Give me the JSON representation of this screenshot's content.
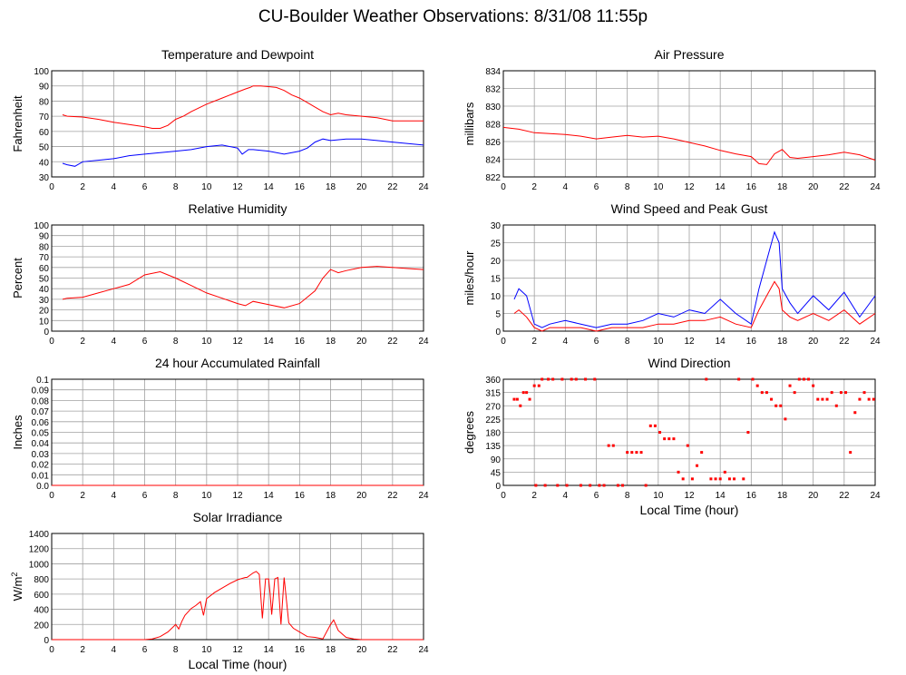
{
  "page_title": "CU-Boulder Weather Observations: 8/31/08 11:55p",
  "colors": {
    "red": "#ff0000",
    "blue": "#0000ff",
    "grid": "#a0a0a0"
  },
  "chart_data": [
    {
      "id": "temp",
      "type": "line",
      "title": "Temperature and Dewpoint",
      "xlabel": "",
      "ylabel": "Fahrenheit",
      "xlim": [
        0,
        24
      ],
      "ylim": [
        30,
        100
      ],
      "xticks": [
        0,
        2,
        4,
        6,
        8,
        10,
        12,
        14,
        16,
        18,
        20,
        22,
        24
      ],
      "yticks": [
        30,
        40,
        50,
        60,
        70,
        80,
        90,
        100
      ],
      "series": [
        {
          "color": "#ff0000",
          "x": [
            0.7,
            1,
            2,
            3,
            4,
            5,
            6,
            6.5,
            7,
            7.5,
            8,
            8.5,
            9,
            10,
            11,
            12,
            12.5,
            12.8,
            13,
            13.5,
            14,
            14.5,
            15,
            15.5,
            16,
            16.5,
            17,
            17.5,
            18,
            18.5,
            19,
            20,
            21,
            22,
            23,
            24
          ],
          "y": [
            71,
            70,
            69.5,
            68,
            66,
            64.5,
            63,
            62,
            62,
            64,
            68,
            70,
            73,
            78,
            82,
            86,
            88,
            89,
            90,
            90,
            89.5,
            89,
            87,
            84,
            82,
            79,
            76,
            73,
            71,
            72,
            71,
            70,
            69,
            67,
            67,
            67
          ]
        },
        {
          "color": "#0000ff",
          "x": [
            0.7,
            1,
            1.5,
            2,
            3,
            4,
            5,
            6,
            7,
            8,
            9,
            10,
            11,
            12,
            12.3,
            12.7,
            13,
            14,
            15,
            16,
            16.5,
            17,
            17.5,
            18,
            19,
            20,
            21,
            22,
            23,
            24
          ],
          "y": [
            39,
            38,
            37,
            40,
            41,
            42,
            44,
            45,
            46,
            47,
            48,
            50,
            51,
            49,
            45,
            48,
            48,
            47,
            45,
            47,
            49,
            53,
            55,
            54,
            55,
            55,
            54,
            53,
            52,
            51
          ]
        }
      ]
    },
    {
      "id": "pressure",
      "type": "line",
      "title": "Air Pressure",
      "xlabel": "",
      "ylabel": "millibars",
      "xlim": [
        0,
        24
      ],
      "ylim": [
        822,
        834
      ],
      "xticks": [
        0,
        2,
        4,
        6,
        8,
        10,
        12,
        14,
        16,
        18,
        20,
        22,
        24
      ],
      "yticks": [
        822,
        824,
        826,
        828,
        830,
        832,
        834
      ],
      "series": [
        {
          "color": "#ff0000",
          "x": [
            0,
            1,
            2,
            3,
            4,
            5,
            6,
            7,
            8,
            9,
            10,
            11,
            12,
            13,
            14,
            15,
            16,
            16.5,
            17,
            17.5,
            18,
            18.5,
            19,
            20,
            21,
            22,
            23,
            24
          ],
          "y": [
            827.6,
            827.4,
            827.0,
            826.9,
            826.8,
            826.6,
            826.3,
            826.5,
            826.7,
            826.5,
            826.6,
            826.3,
            825.9,
            825.5,
            825.0,
            824.6,
            824.3,
            823.5,
            823.4,
            824.6,
            825.1,
            824.2,
            824.1,
            824.3,
            824.5,
            824.8,
            824.5,
            823.9
          ]
        }
      ]
    },
    {
      "id": "humidity",
      "type": "line",
      "title": "Relative Humidity",
      "xlabel": "",
      "ylabel": "Percent",
      "xlim": [
        0,
        24
      ],
      "ylim": [
        0,
        100
      ],
      "xticks": [
        0,
        2,
        4,
        6,
        8,
        10,
        12,
        14,
        16,
        18,
        20,
        22,
        24
      ],
      "yticks": [
        0,
        10,
        20,
        30,
        40,
        50,
        60,
        70,
        80,
        90,
        100
      ],
      "series": [
        {
          "color": "#ff0000",
          "x": [
            0.7,
            1,
            2,
            3,
            4,
            5,
            6,
            7,
            8,
            9,
            10,
            11,
            12,
            12.5,
            13,
            14,
            15,
            16,
            17,
            17.5,
            18,
            18.5,
            19,
            20,
            21,
            22,
            23,
            24
          ],
          "y": [
            30,
            31,
            32,
            36,
            40,
            44,
            53,
            56,
            50,
            43,
            36,
            31,
            26,
            24,
            28,
            25,
            22,
            26,
            38,
            50,
            58,
            55,
            57,
            60,
            61,
            60,
            59,
            58
          ]
        }
      ]
    },
    {
      "id": "wind",
      "type": "line",
      "title": "Wind Speed and Peak Gust",
      "xlabel": "",
      "ylabel": "miles/hour",
      "xlim": [
        0,
        24
      ],
      "ylim": [
        0,
        30
      ],
      "xticks": [
        0,
        2,
        4,
        6,
        8,
        10,
        12,
        14,
        16,
        18,
        20,
        22,
        24
      ],
      "yticks": [
        0,
        5,
        10,
        15,
        20,
        25,
        30
      ],
      "series": [
        {
          "color": "#0000ff",
          "x": [
            0.7,
            1,
            1.5,
            2,
            2.5,
            3,
            4,
            5,
            6,
            7,
            8,
            9,
            10,
            11,
            12,
            13,
            14,
            15,
            16,
            16.5,
            17,
            17.5,
            17.8,
            18,
            18.5,
            19,
            20,
            21,
            22,
            23,
            24
          ],
          "y": [
            9,
            12,
            10,
            2,
            1,
            2,
            3,
            2,
            1,
            2,
            2,
            3,
            5,
            4,
            6,
            5,
            9,
            5,
            2,
            12,
            20,
            28,
            25,
            12,
            8,
            5,
            10,
            6,
            11,
            4,
            10
          ]
        },
        {
          "color": "#ff0000",
          "x": [
            0.7,
            1,
            1.5,
            2,
            2.5,
            3,
            4,
            5,
            6,
            7,
            8,
            9,
            10,
            11,
            12,
            13,
            14,
            15,
            16,
            16.5,
            17,
            17.5,
            17.8,
            18,
            18.5,
            19,
            20,
            21,
            22,
            23,
            24
          ],
          "y": [
            5,
            6,
            4,
            1,
            0,
            1,
            1,
            1,
            0,
            1,
            1,
            1,
            2,
            2,
            3,
            3,
            4,
            2,
            1,
            6,
            10,
            14,
            12,
            6,
            4,
            3,
            5,
            3,
            6,
            2,
            5
          ]
        }
      ]
    },
    {
      "id": "rain",
      "type": "line",
      "title": "24 hour Accumulated Rainfall",
      "xlabel": "",
      "ylabel": "Inches",
      "xlim": [
        0,
        24
      ],
      "ylim": [
        0,
        0.1
      ],
      "xticks": [
        0,
        2,
        4,
        6,
        8,
        10,
        12,
        14,
        16,
        18,
        20,
        22,
        24
      ],
      "yticks": [
        "0.0",
        "0.01",
        "0.02",
        "0.03",
        "0.04",
        "0.05",
        "0.06",
        "0.07",
        "0.08",
        "0.09",
        "0.1"
      ],
      "series": [
        {
          "color": "#ff0000",
          "x": [
            0,
            24
          ],
          "y": [
            0,
            0
          ]
        }
      ]
    },
    {
      "id": "direction",
      "type": "scatter",
      "title": "Wind Direction",
      "xlabel": "Local Time (hour)",
      "ylabel": "degrees",
      "xlim": [
        0,
        24
      ],
      "ylim": [
        0,
        360
      ],
      "xticks": [
        0,
        2,
        4,
        6,
        8,
        10,
        12,
        14,
        16,
        18,
        20,
        22,
        24
      ],
      "yticks": [
        0,
        45,
        90,
        135,
        180,
        225,
        270,
        315,
        360
      ],
      "series": [
        {
          "color": "#ff0000",
          "x": [
            0.7,
            0.9,
            1.1,
            1.3,
            1.5,
            1.7,
            2.0,
            2.1,
            2.3,
            2.5,
            2.7,
            2.9,
            3.2,
            3.5,
            3.8,
            4.1,
            4.4,
            4.7,
            5.0,
            5.3,
            5.6,
            5.9,
            6.2,
            6.5,
            6.8,
            7.1,
            7.4,
            7.7,
            8.0,
            8.3,
            8.6,
            8.9,
            9.2,
            9.5,
            9.8,
            10.1,
            10.4,
            10.7,
            11.0,
            11.3,
            11.6,
            11.9,
            12.2,
            12.5,
            12.8,
            13.1,
            13.4,
            13.7,
            14.0,
            14.3,
            14.6,
            14.9,
            15.2,
            15.5,
            15.8,
            16.1,
            16.4,
            16.7,
            17.0,
            17.3,
            17.6,
            17.9,
            18.2,
            18.5,
            18.8,
            19.1,
            19.4,
            19.7,
            20.0,
            20.3,
            20.6,
            20.9,
            21.2,
            21.5,
            21.8,
            22.1,
            22.4,
            22.7,
            23.0,
            23.3,
            23.6,
            23.9
          ],
          "y": [
            292,
            292,
            270,
            315,
            315,
            292,
            338,
            0,
            338,
            360,
            0,
            360,
            360,
            0,
            360,
            0,
            360,
            360,
            0,
            360,
            0,
            360,
            0,
            0,
            135,
            135,
            0,
            0,
            112,
            112,
            112,
            112,
            0,
            202,
            202,
            180,
            158,
            158,
            158,
            45,
            22,
            135,
            22,
            67,
            112,
            360,
            22,
            22,
            22,
            45,
            22,
            22,
            360,
            22,
            180,
            360,
            338,
            315,
            315,
            292,
            270,
            270,
            225,
            338,
            315,
            360,
            360,
            360,
            338,
            292,
            292,
            292,
            315,
            270,
            315,
            315,
            112,
            247,
            292,
            315,
            292,
            292
          ]
        }
      ]
    },
    {
      "id": "solar",
      "type": "line",
      "title": "Solar Irradiance",
      "xlabel": "Local Time (hour)",
      "ylabel": "W/m",
      "ylabel_sup": "2",
      "xlim": [
        0,
        24
      ],
      "ylim": [
        0,
        1400
      ],
      "xticks": [
        0,
        2,
        4,
        6,
        8,
        10,
        12,
        14,
        16,
        18,
        20,
        22,
        24
      ],
      "yticks": [
        0,
        200,
        400,
        600,
        800,
        1000,
        1200,
        1400
      ],
      "series": [
        {
          "color": "#ff0000",
          "x": [
            0,
            6,
            6.5,
            7,
            7.5,
            7.8,
            8,
            8.2,
            8.4,
            8.6,
            9,
            9.3,
            9.6,
            9.8,
            10,
            10.5,
            11,
            11.5,
            12,
            12.5,
            12.6,
            13,
            13.2,
            13.4,
            13.6,
            13.8,
            14,
            14.1,
            14.2,
            14.4,
            14.6,
            14.8,
            15,
            15.3,
            15.6,
            16,
            16.5,
            17,
            17.5,
            18,
            18.2,
            18.5,
            19,
            19.5,
            20,
            24
          ],
          "y": [
            0,
            0,
            10,
            40,
            100,
            160,
            200,
            140,
            240,
            320,
            410,
            450,
            500,
            320,
            540,
            620,
            680,
            740,
            790,
            820,
            820,
            880,
            900,
            860,
            280,
            800,
            800,
            600,
            330,
            800,
            820,
            200,
            820,
            220,
            150,
            100,
            40,
            30,
            10,
            200,
            260,
            120,
            30,
            10,
            0,
            0
          ]
        }
      ]
    }
  ]
}
